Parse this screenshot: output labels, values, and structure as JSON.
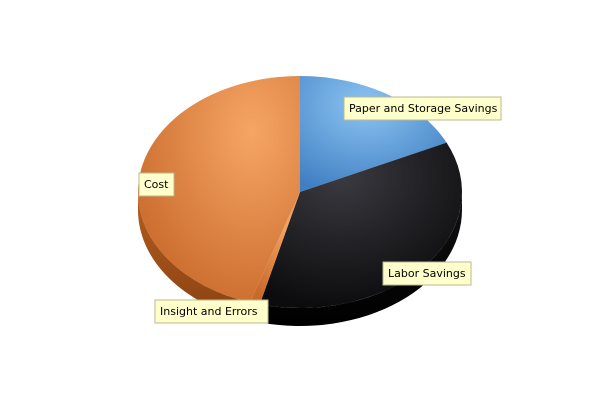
{
  "chart_data": {
    "type": "pie",
    "title": "",
    "legend": "none",
    "slices": [
      {
        "label": "Paper and Storage Savings",
        "value": 18,
        "color": "#5a9be0"
      },
      {
        "label": "Labor Savings",
        "value": 36,
        "color": "#1f1f22"
      },
      {
        "label": "Insight and Errors",
        "value": 1,
        "color": "#d9883f"
      },
      {
        "label": "Cost",
        "value": 45,
        "color": "#e08a45"
      }
    ]
  }
}
